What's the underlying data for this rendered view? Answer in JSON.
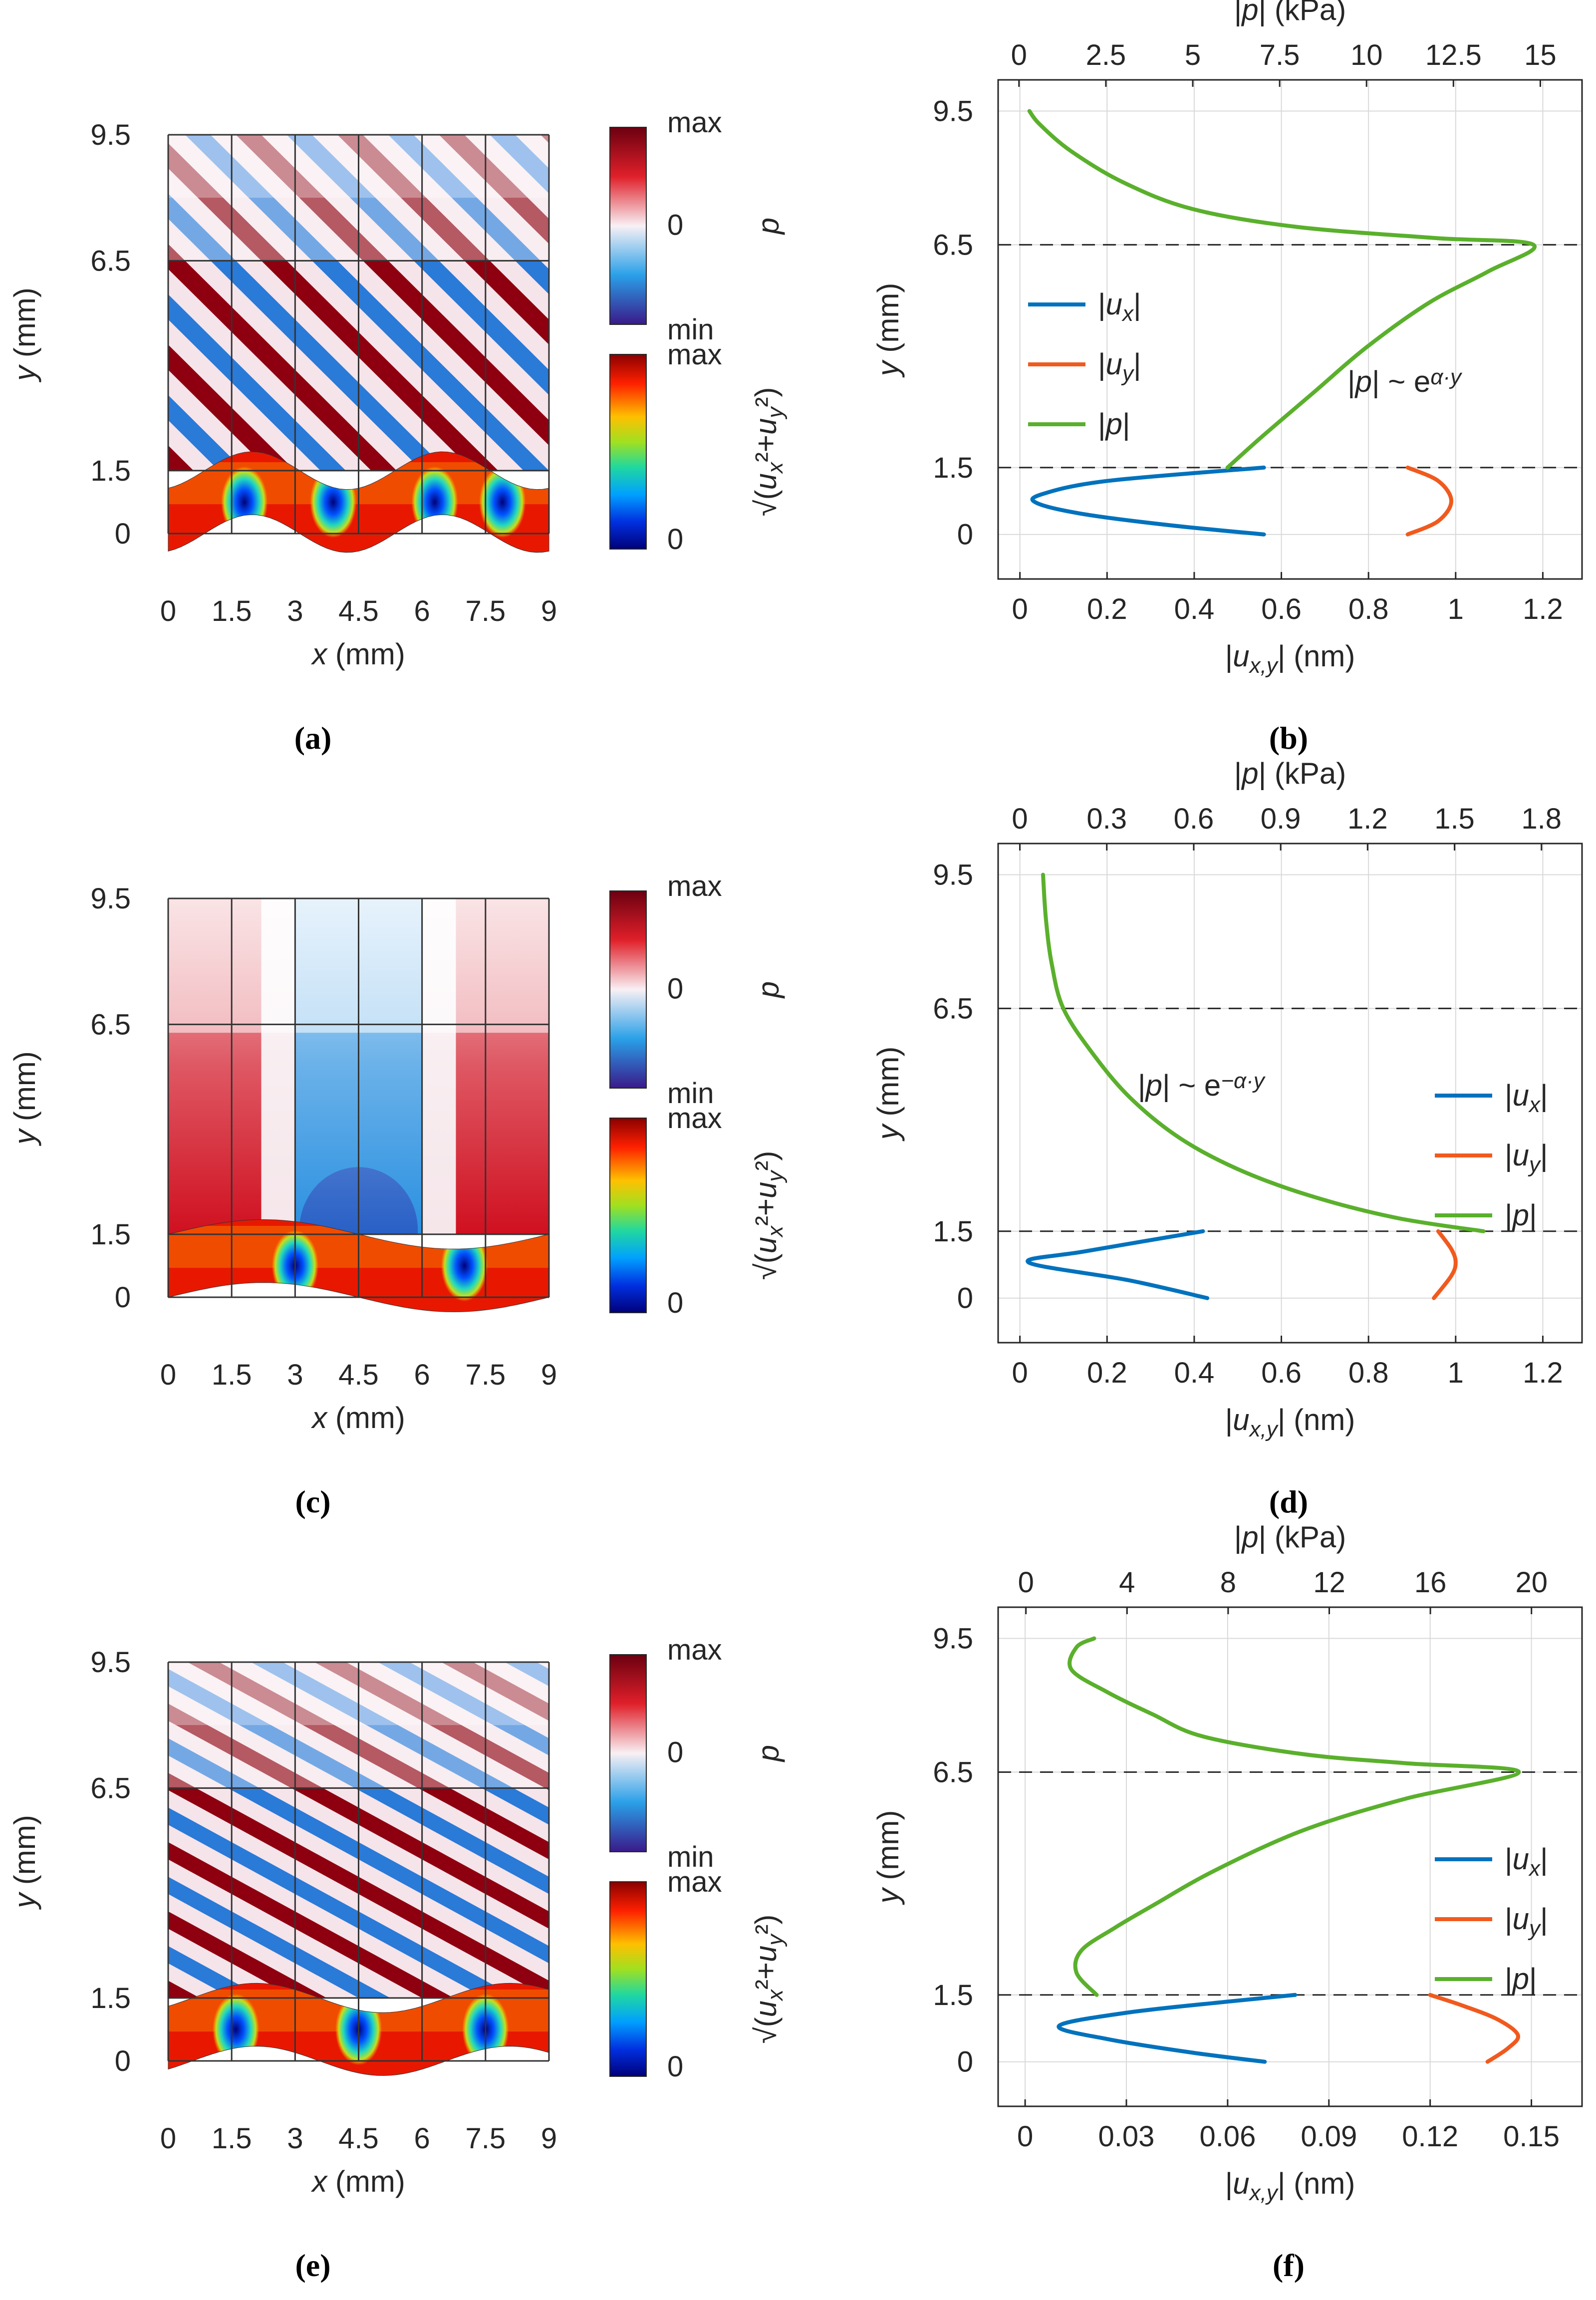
{
  "labels": {
    "x_axis": "x (mm)",
    "y_axis": "y (mm)",
    "bottom_axis": "|u_x,y| (nm)",
    "top_axis": "|p| (kPa)",
    "colorbar_p_max": "max",
    "colorbar_p_zero": "0",
    "colorbar_p_min": "min",
    "colorbar_p_label": "p",
    "colorbar_u_max": "max",
    "colorbar_u_zero": "0",
    "colorbar_u_label": "√(u_x²+u_y²)"
  },
  "captions": [
    "a",
    "b",
    "c",
    "d",
    "e",
    "f"
  ],
  "chart_data": [
    {
      "id": "a",
      "type": "heatmap",
      "title": "(a)",
      "xlabel": "x (mm)",
      "ylabel": "y (mm)",
      "x_ticks": [
        "0",
        "1.5",
        "3",
        "4.5",
        "6",
        "7.5",
        "9"
      ],
      "y_ticks": [
        "0",
        "1.5",
        "6.5",
        "9.5"
      ],
      "fields": [
        "p (fluid, y 1.5–9.5 mm)",
        "√(u_x²+u_y²) (solid, y 0–1.5 mm)"
      ],
      "pressure_pattern": "oblique leaky waves, strongest near y = 6.5 mm"
    },
    {
      "id": "b",
      "type": "line",
      "title": "(b)",
      "xlabel": "|u_x,y| (nm)",
      "x2label": "|p| (kPa)",
      "ylabel": "y (mm)",
      "xlim": [
        -0.05,
        1.29
      ],
      "x_ticks": [
        "0",
        "0.2",
        "0.4",
        "0.6",
        "0.8",
        "1",
        "1.2"
      ],
      "x2lim": [
        -0.6,
        16.2
      ],
      "x2_ticks": [
        "0",
        "2.5",
        "5",
        "7.5",
        "10",
        "12.5",
        "15"
      ],
      "ylim": [
        -1,
        10.2
      ],
      "y_ticks": [
        "0",
        "1.5",
        "6.5",
        "9.5"
      ],
      "dashed_lines_y": [
        1.5,
        6.5
      ],
      "legend": [
        "|u_x|",
        "|u_y|",
        "|p|"
      ],
      "legend_position": "middle-left",
      "annotation": "|p| ~ e^(α·y)",
      "series": [
        {
          "name": "|u_x|",
          "color": "#0072BD",
          "axis": "bottom",
          "points": [
            [
              0.56,
              0
            ],
            [
              0.35,
              0.2
            ],
            [
              0.15,
              0.45
            ],
            [
              0.04,
              0.7
            ],
            [
              0.05,
              0.9
            ],
            [
              0.2,
              1.2
            ],
            [
              0.56,
              1.5
            ]
          ]
        },
        {
          "name": "|u_y|",
          "color": "#F05A1E",
          "axis": "bottom",
          "points": [
            [
              0.89,
              0
            ],
            [
              0.96,
              0.3
            ],
            [
              0.99,
              0.75
            ],
            [
              0.96,
              1.2
            ],
            [
              0.89,
              1.5
            ]
          ]
        },
        {
          "name": "|p|",
          "color": "#5AB02C",
          "axis": "top",
          "points": [
            [
              6,
              1.5
            ],
            [
              7,
              2.2
            ],
            [
              8.5,
              3.2
            ],
            [
              10,
              4.2
            ],
            [
              11.8,
              5.2
            ],
            [
              13.5,
              5.9
            ],
            [
              14.8,
              6.5
            ],
            [
              12,
              6.65
            ],
            [
              8,
              6.9
            ],
            [
              5,
              7.3
            ],
            [
              3,
              7.9
            ],
            [
              1.5,
              8.6
            ],
            [
              0.6,
              9.2
            ],
            [
              0.3,
              9.5
            ]
          ]
        }
      ]
    },
    {
      "id": "c",
      "type": "heatmap",
      "title": "(c)",
      "xlabel": "x (mm)",
      "ylabel": "y (mm)",
      "x_ticks": [
        "0",
        "1.5",
        "3",
        "4.5",
        "6",
        "7.5",
        "9"
      ],
      "y_ticks": [
        "0",
        "1.5",
        "6.5",
        "9.5"
      ],
      "fields": [
        "p (fluid, y 1.5–9.5 mm)",
        "√(u_x²+u_y²) (solid, y 0–1.5 mm)"
      ],
      "pressure_pattern": "evanescent field decaying away from the plate"
    },
    {
      "id": "d",
      "type": "line",
      "title": "(d)",
      "xlabel": "|u_x,y| (nm)",
      "x2label": "|p| (kPa)",
      "ylabel": "y (mm)",
      "xlim": [
        -0.05,
        1.29
      ],
      "x_ticks": [
        "0",
        "0.2",
        "0.4",
        "0.6",
        "0.8",
        "1",
        "1.2"
      ],
      "x2lim": [
        -0.075,
        1.94
      ],
      "x2_ticks": [
        "0",
        "0.3",
        "0.6",
        "0.9",
        "1.2",
        "1.5",
        "1.8"
      ],
      "ylim": [
        -1,
        10.2
      ],
      "y_ticks": [
        "0",
        "1.5",
        "6.5",
        "9.5"
      ],
      "dashed_lines_y": [
        1.5,
        6.5
      ],
      "legend": [
        "|u_x|",
        "|u_y|",
        "|p|"
      ],
      "legend_position": "middle-right",
      "annotation": "|p| ~ e^(−α·y)",
      "series": [
        {
          "name": "|u_x|",
          "color": "#0072BD",
          "axis": "bottom",
          "points": [
            [
              0.43,
              0
            ],
            [
              0.25,
              0.4
            ],
            [
              0.02,
              0.8
            ],
            [
              0.15,
              1.05
            ],
            [
              0.42,
              1.5
            ]
          ]
        },
        {
          "name": "|u_y|",
          "color": "#F05A1E",
          "axis": "bottom",
          "points": [
            [
              0.95,
              0
            ],
            [
              0.99,
              0.5
            ],
            [
              1.0,
              0.8
            ],
            [
              0.99,
              1.1
            ],
            [
              0.96,
              1.5
            ]
          ]
        },
        {
          "name": "|p|",
          "color": "#5AB02C",
          "axis": "top",
          "points": [
            [
              1.6,
              1.5
            ],
            [
              1.3,
              1.8
            ],
            [
              1.0,
              2.3
            ],
            [
              0.75,
              2.9
            ],
            [
              0.55,
              3.6
            ],
            [
              0.38,
              4.5
            ],
            [
              0.25,
              5.5
            ],
            [
              0.15,
              6.5
            ],
            [
              0.11,
              7.5
            ],
            [
              0.09,
              8.5
            ],
            [
              0.08,
              9.5
            ]
          ]
        }
      ]
    },
    {
      "id": "e",
      "type": "heatmap",
      "title": "(e)",
      "xlabel": "x (mm)",
      "ylabel": "y (mm)",
      "x_ticks": [
        "0",
        "1.5",
        "3",
        "4.5",
        "6",
        "7.5",
        "9"
      ],
      "y_ticks": [
        "0",
        "1.5",
        "6.5",
        "9.5"
      ],
      "fields": [
        "p (fluid, y 1.5–9.5 mm)",
        "√(u_x²+u_y²) (solid, y 0–1.5 mm)"
      ],
      "pressure_pattern": "oblique waves, strongest near y = 6.5 mm"
    },
    {
      "id": "f",
      "type": "line",
      "title": "(f)",
      "xlabel": "|u_x,y| (nm)",
      "x2label": "|p| (kPa)",
      "ylabel": "y (mm)",
      "xlim": [
        -0.008,
        0.165
      ],
      "x_ticks": [
        "0",
        "0.03",
        "0.06",
        "0.09",
        "0.12",
        "0.15"
      ],
      "x2lim": [
        -1.1,
        22.0
      ],
      "x2_ticks": [
        "0",
        "4",
        "8",
        "12",
        "16",
        "20"
      ],
      "ylim": [
        -1,
        10.2
      ],
      "y_ticks": [
        "0",
        "1.5",
        "6.5",
        "9.5"
      ],
      "dashed_lines_y": [
        1.5,
        6.5
      ],
      "legend": [
        "|u_x|",
        "|u_y|",
        "|p|"
      ],
      "legend_position": "middle-right",
      "series": [
        {
          "name": "|u_x|",
          "color": "#0072BD",
          "axis": "bottom",
          "points": [
            [
              0.071,
              0
            ],
            [
              0.05,
              0.2
            ],
            [
              0.025,
              0.5
            ],
            [
              0.01,
              0.8
            ],
            [
              0.03,
              1.1
            ],
            [
              0.06,
              1.35
            ],
            [
              0.08,
              1.5
            ]
          ]
        },
        {
          "name": "|u_y|",
          "color": "#F05A1E",
          "axis": "bottom",
          "points": [
            [
              0.137,
              0
            ],
            [
              0.143,
              0.3
            ],
            [
              0.146,
              0.6
            ],
            [
              0.14,
              0.95
            ],
            [
              0.13,
              1.25
            ],
            [
              0.12,
              1.5
            ]
          ]
        },
        {
          "name": "|p|",
          "color": "#5AB02C",
          "axis": "top",
          "points": [
            [
              2.8,
              1.5
            ],
            [
              2.0,
              2.0
            ],
            [
              2.2,
              2.5
            ],
            [
              3.5,
              3.0
            ],
            [
              5,
              3.5
            ],
            [
              7.5,
              4.3
            ],
            [
              11,
              5.2
            ],
            [
              15,
              5.9
            ],
            [
              19.5,
              6.5
            ],
            [
              15,
              6.7
            ],
            [
              11,
              6.9
            ],
            [
              7,
              7.3
            ],
            [
              5,
              7.8
            ],
            [
              3.2,
              8.3
            ],
            [
              1.8,
              8.8
            ],
            [
              2.0,
              9.3
            ],
            [
              2.7,
              9.5
            ]
          ]
        }
      ]
    }
  ]
}
